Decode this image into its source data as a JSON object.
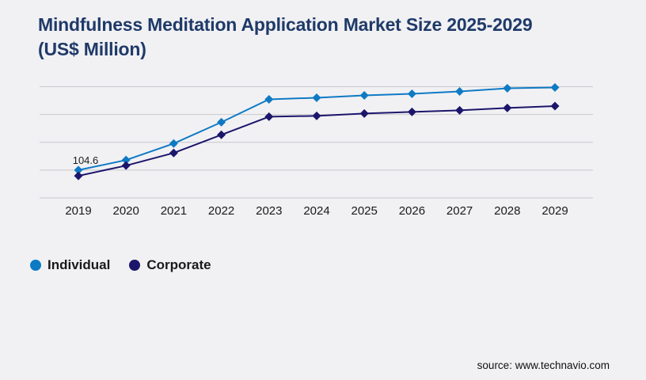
{
  "page": {
    "background": "#f1f1f4"
  },
  "header": {
    "title_line1": "Mindfulness Meditation Application Market Size 2025-2029",
    "title_line2": "(US$ Million)",
    "title_color": "#1f3a68"
  },
  "chart_data": {
    "type": "line",
    "title": "Mindfulness Meditation Application Market Size 2025-2029 (US$ Million)",
    "categories": [
      "2019",
      "2020",
      "2021",
      "2022",
      "2023",
      "2024",
      "2025",
      "2026",
      "2027",
      "2028",
      "2029"
    ],
    "series": [
      {
        "name": "Individual",
        "color": "#0f7ac4",
        "marker": "diamond",
        "values": [
          104.6,
          142.4,
          204.7,
          284.8,
          370.9,
          376.8,
          385.7,
          391.6,
          400.5,
          412.4,
          415.4
        ]
      },
      {
        "name": "Corporate",
        "color": "#1c166b",
        "marker": "diamond",
        "values": [
          83.1,
          121.6,
          169.1,
          237.4,
          305.6,
          308.6,
          317.5,
          323.4,
          329.3,
          338.2,
          345.6
        ]
      }
    ],
    "data_labels": [
      {
        "series": "Individual",
        "category": "2019",
        "text": "104.6"
      }
    ],
    "xlabel": "",
    "ylabel": "",
    "ylim": [
      0,
      418.4
    ],
    "y_gridline_values": [
      0,
      104.6,
      209.2,
      313.8,
      418.4
    ],
    "y_axis_tick_labels_visible": false,
    "grid": true,
    "gridline_color": "#c8c8cc",
    "axis_label_color": "#1a1a1a",
    "data_label_color": "#1d1d1d",
    "legend_position": "bottom-left"
  },
  "footer": {
    "source_text": "source: www.technavio.com"
  }
}
